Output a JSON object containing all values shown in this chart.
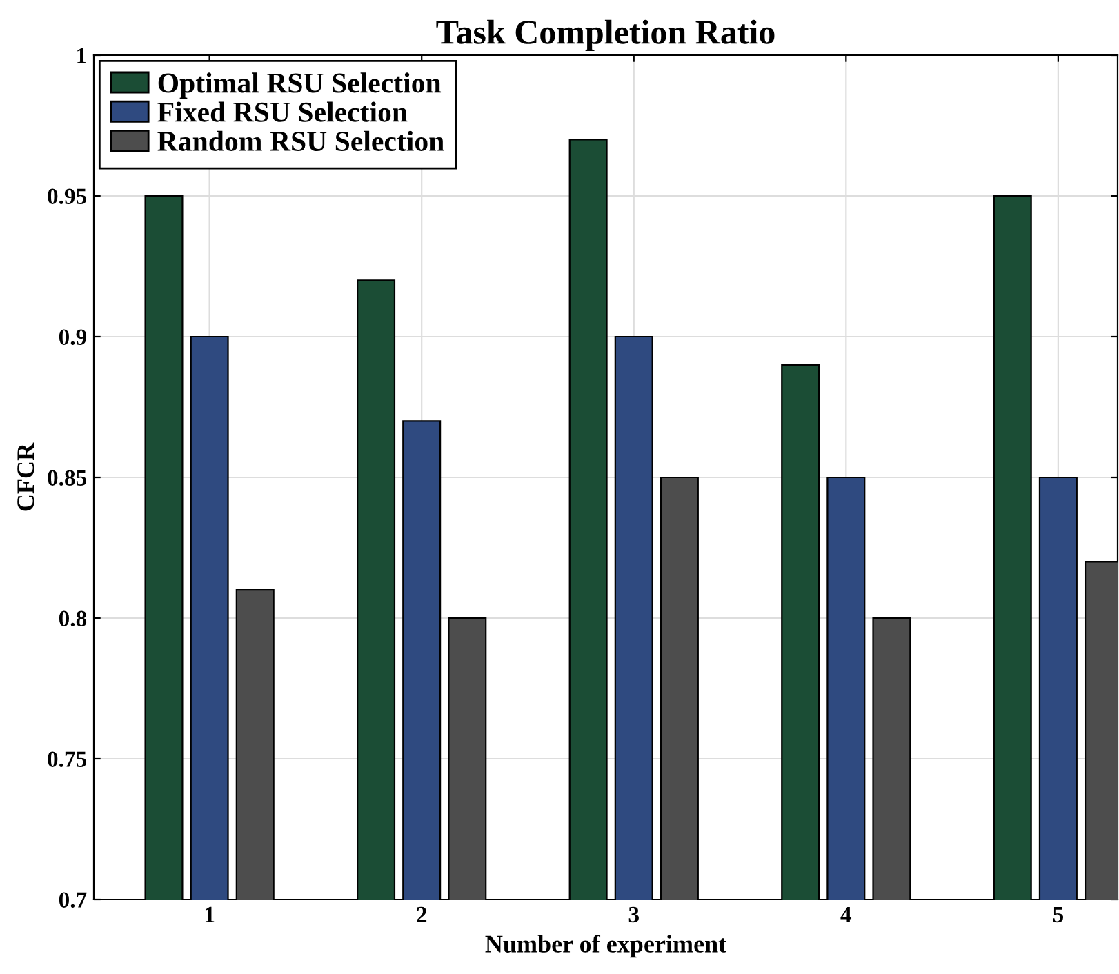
{
  "chart_data": {
    "type": "bar",
    "title": "Task Completion Ratio",
    "xlabel": "Number of experiment",
    "ylabel": "CFCR",
    "categories": [
      "1",
      "2",
      "3",
      "4",
      "5"
    ],
    "series": [
      {
        "name": "Optimal RSU Selection",
        "color": "#1b4d35",
        "values": [
          0.95,
          0.92,
          0.97,
          0.89,
          0.95
        ]
      },
      {
        "name": "Fixed RSU Selection",
        "color": "#2f4a80",
        "values": [
          0.9,
          0.87,
          0.9,
          0.85,
          0.85
        ]
      },
      {
        "name": "Random RSU Selection",
        "color": "#4d4d4d",
        "values": [
          0.81,
          0.8,
          0.85,
          0.8,
          0.82
        ]
      }
    ],
    "ylim": [
      0.7,
      1
    ],
    "yticks": [
      0.7,
      0.75,
      0.8,
      0.85,
      0.9,
      0.95,
      1
    ],
    "grid": true,
    "legend": "top left"
  }
}
